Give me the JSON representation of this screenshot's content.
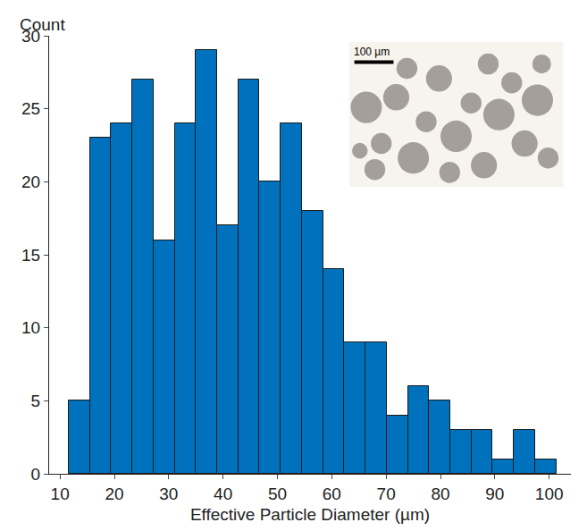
{
  "chart_data": {
    "type": "histogram",
    "xlabel": "Effective Particle Diameter (µm)",
    "ylabel": "Count",
    "bins": [
      11.6,
      15.5,
      19.4,
      23.3,
      27.2,
      31.1,
      35.0,
      38.9,
      42.8,
      46.7,
      50.6,
      54.5,
      58.4,
      62.3,
      66.2,
      70.1,
      74.0,
      77.9,
      81.8,
      85.7,
      89.6,
      93.5,
      97.4,
      101.3
    ],
    "values": [
      5,
      23,
      24,
      27,
      16,
      24,
      29,
      17,
      27,
      20,
      24,
      18,
      14,
      9,
      9,
      4,
      6,
      5,
      3,
      3,
      1,
      3,
      1
    ],
    "color": "#0072bd",
    "xlim": [
      8,
      104
    ],
    "xticks": [
      10,
      20,
      30,
      40,
      50,
      60,
      70,
      80,
      90,
      100
    ],
    "ylim": [
      0,
      30
    ],
    "yticks": [
      0,
      5,
      10,
      15,
      20,
      25,
      30
    ],
    "grid": false,
    "annotations": [
      "100 µm"
    ]
  }
}
